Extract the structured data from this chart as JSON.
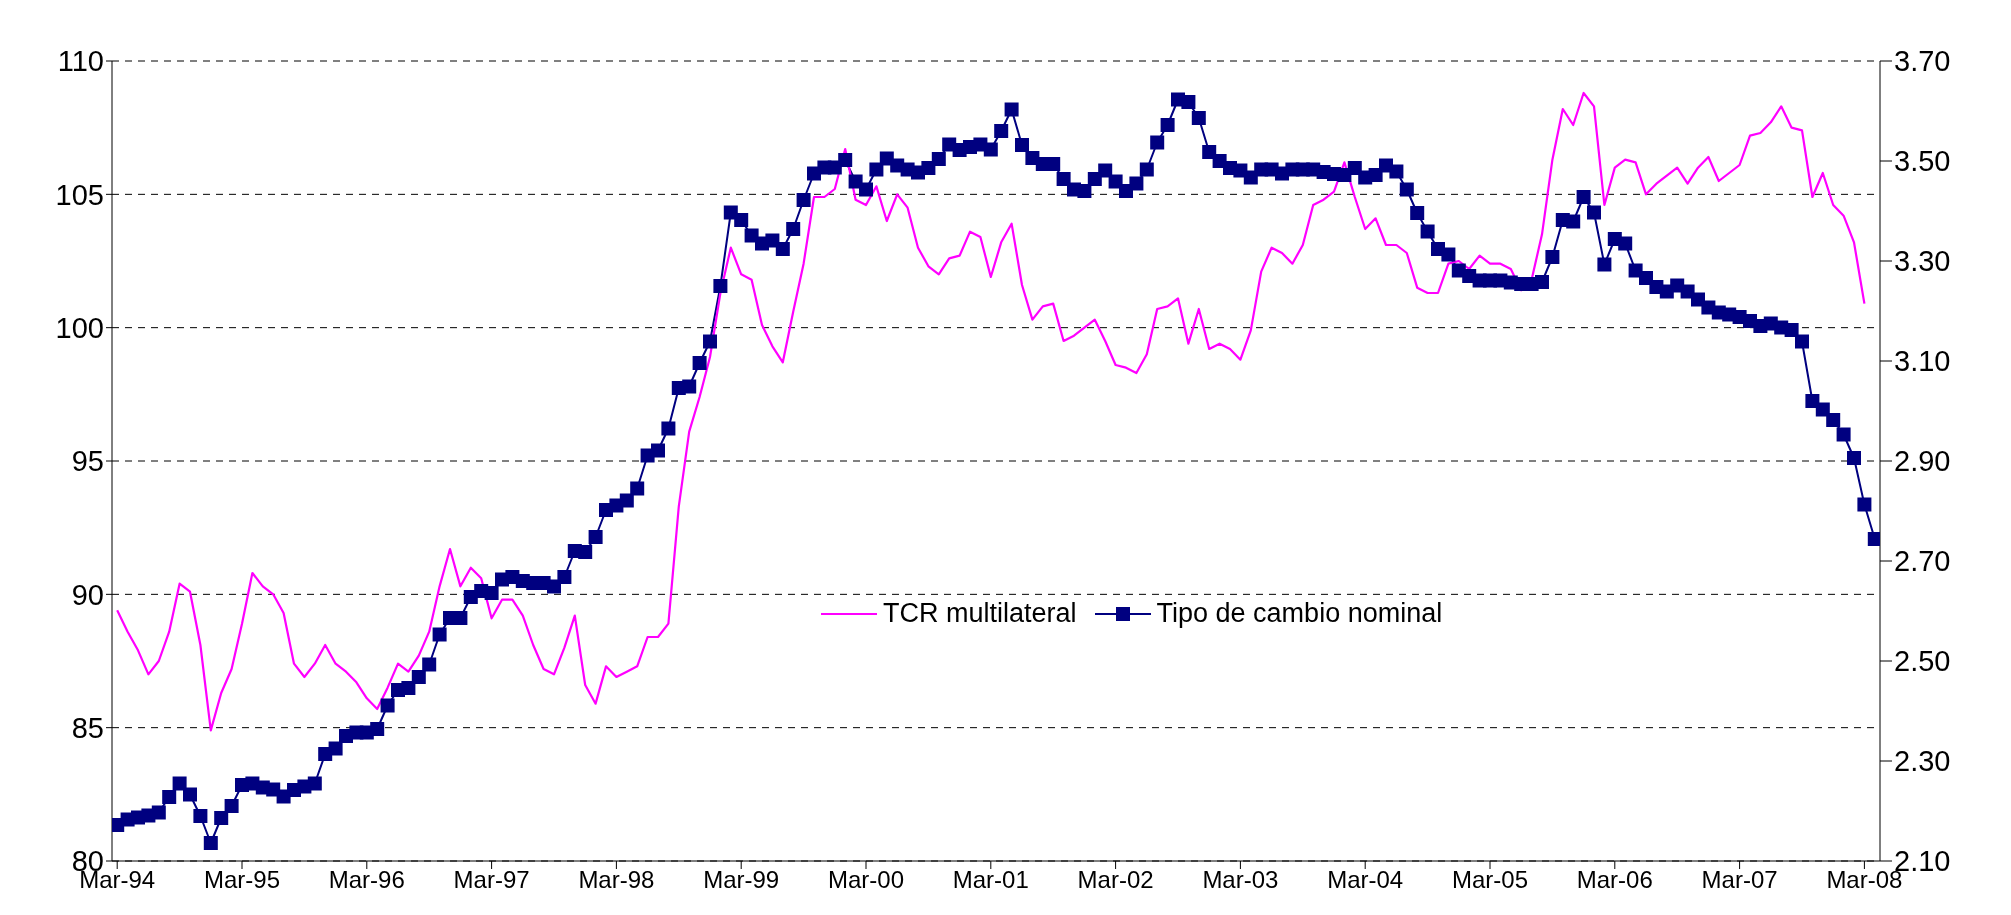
{
  "chart_data": {
    "type": "line",
    "categories": [
      "Mar-94",
      null,
      null,
      null,
      null,
      null,
      null,
      null,
      null,
      null,
      null,
      null,
      "Mar-95",
      null,
      null,
      null,
      null,
      null,
      null,
      null,
      null,
      null,
      null,
      null,
      "Mar-96",
      null,
      null,
      null,
      null,
      null,
      null,
      null,
      null,
      null,
      null,
      null,
      "Mar-97",
      null,
      null,
      null,
      null,
      null,
      null,
      null,
      null,
      null,
      null,
      null,
      "Mar-98",
      null,
      null,
      null,
      null,
      null,
      null,
      null,
      null,
      null,
      null,
      null,
      "Mar-99",
      null,
      null,
      null,
      null,
      null,
      null,
      null,
      null,
      null,
      null,
      null,
      "Mar-00",
      null,
      null,
      null,
      null,
      null,
      null,
      null,
      null,
      null,
      null,
      null,
      "Mar-01",
      null,
      null,
      null,
      null,
      null,
      null,
      null,
      null,
      null,
      null,
      null,
      "Mar-02",
      null,
      null,
      null,
      null,
      null,
      null,
      null,
      null,
      null,
      null,
      null,
      "Mar-03",
      null,
      null,
      null,
      null,
      null,
      null,
      null,
      null,
      null,
      null,
      null,
      "Mar-04",
      null,
      null,
      null,
      null,
      null,
      null,
      null,
      null,
      null,
      null,
      null,
      "Mar-05",
      null,
      null,
      null,
      null,
      null,
      null,
      null,
      null,
      null,
      null,
      null,
      "Mar-06",
      null,
      null,
      null,
      null,
      null,
      null,
      null,
      null,
      null,
      null,
      null,
      "Mar-07",
      null,
      null,
      null,
      null,
      null,
      null,
      null,
      null,
      null,
      null,
      null,
      "Mar-08",
      null
    ],
    "series": [
      {
        "name": "TCR multilateral",
        "color": "#ff00ff",
        "marker": "none",
        "values": [
          89.4,
          88.6,
          87.9,
          87.0,
          87.5,
          88.6,
          90.4,
          90.1,
          88.1,
          84.9,
          86.3,
          87.2,
          88.9,
          90.8,
          90.3,
          90.0,
          89.3,
          87.4,
          86.9,
          87.4,
          88.1,
          87.4,
          87.1,
          86.7,
          86.1,
          85.7,
          86.5,
          87.4,
          87.1,
          87.7,
          88.6,
          90.3,
          91.7,
          90.3,
          91.0,
          90.6,
          89.1,
          89.8,
          89.8,
          89.2,
          88.1,
          87.2,
          87.0,
          88.0,
          89.2,
          86.6,
          85.9,
          87.3,
          86.9,
          87.1,
          87.3,
          88.4,
          88.4,
          88.9,
          93.3,
          96.1,
          97.4,
          98.9,
          101.3,
          103.0,
          102.0,
          101.8,
          100.1,
          99.3,
          98.7,
          100.6,
          102.4,
          104.9,
          104.9,
          105.2,
          106.7,
          104.8,
          104.6,
          105.3,
          104.0,
          105.0,
          104.5,
          103.0,
          102.3,
          102.0,
          102.6,
          102.7,
          103.6,
          103.4,
          101.9,
          103.2,
          103.9,
          101.6,
          100.3,
          100.8,
          100.9,
          99.5,
          99.7,
          100.0,
          100.3,
          99.5,
          98.6,
          98.5,
          98.3,
          99.0,
          100.7,
          100.8,
          101.1,
          99.4,
          100.7,
          99.2,
          99.4,
          99.2,
          98.8,
          99.9,
          102.1,
          103.0,
          102.8,
          102.4,
          103.1,
          104.6,
          104.8,
          105.1,
          106.2,
          104.9,
          103.7,
          104.1,
          103.1,
          103.1,
          102.8,
          101.5,
          101.3,
          101.3,
          102.4,
          102.5,
          102.2,
          102.7,
          102.4,
          102.4,
          102.2,
          101.4,
          101.8,
          103.5,
          106.3,
          108.2,
          107.6,
          108.8,
          108.3,
          104.6,
          106.0,
          106.3,
          106.2,
          105.0,
          105.4,
          105.7,
          106.0,
          105.4,
          106.0,
          106.4,
          105.5,
          105.8,
          106.1,
          107.2,
          107.3,
          107.7,
          108.3,
          107.5,
          107.4,
          104.9,
          105.8,
          104.6,
          104.2,
          103.2,
          100.9,
          null
        ]
      },
      {
        "name": "Tipo de cambio nominal",
        "color": "#000080",
        "marker": "square",
        "axis": "y2",
        "values": [
          2.172,
          2.183,
          2.187,
          2.191,
          2.197,
          2.228,
          2.255,
          2.233,
          2.19,
          2.136,
          2.186,
          2.21,
          2.252,
          2.255,
          2.247,
          2.243,
          2.229,
          2.242,
          2.249,
          2.255,
          2.314,
          2.325,
          2.35,
          2.357,
          2.357,
          2.364,
          2.411,
          2.442,
          2.446,
          2.468,
          2.493,
          2.553,
          2.586,
          2.586,
          2.628,
          2.64,
          2.636,
          2.663,
          2.668,
          2.66,
          2.656,
          2.656,
          2.649,
          2.668,
          2.72,
          2.718,
          2.748,
          2.802,
          2.811,
          2.821,
          2.845,
          2.911,
          2.921,
          2.965,
          3.046,
          3.049,
          3.096,
          3.139,
          3.25,
          3.397,
          3.382,
          3.351,
          3.335,
          3.341,
          3.324,
          3.364,
          3.422,
          3.475,
          3.487,
          3.487,
          3.502,
          3.459,
          3.443,
          3.483,
          3.505,
          3.491,
          3.483,
          3.477,
          3.486,
          3.504,
          3.533,
          3.522,
          3.528,
          3.533,
          3.523,
          3.56,
          3.603,
          3.532,
          3.506,
          3.494,
          3.494,
          3.464,
          3.443,
          3.44,
          3.464,
          3.481,
          3.459,
          3.44,
          3.455,
          3.483,
          3.537,
          3.572,
          3.623,
          3.618,
          3.586,
          3.518,
          3.5,
          3.486,
          3.481,
          3.467,
          3.483,
          3.483,
          3.475,
          3.483,
          3.483,
          3.483,
          3.478,
          3.474,
          3.472,
          3.486,
          3.467,
          3.472,
          3.491,
          3.479,
          3.443,
          3.396,
          3.359,
          3.324,
          3.313,
          3.281,
          3.27,
          3.261,
          3.261,
          3.261,
          3.257,
          3.254,
          3.254,
          3.258,
          3.308,
          3.382,
          3.379,
          3.428,
          3.397,
          3.293,
          3.344,
          3.335,
          3.281,
          3.266,
          3.248,
          3.239,
          3.251,
          3.239,
          3.223,
          3.207,
          3.197,
          3.193,
          3.188,
          3.18,
          3.17,
          3.175,
          3.167,
          3.162,
          3.139,
          3.02,
          3.003,
          2.982,
          2.953,
          2.906,
          2.813,
          2.744
        ]
      }
    ],
    "ylim": [
      80,
      110
    ],
    "yticks": [
      80,
      85,
      90,
      95,
      100,
      105,
      110
    ],
    "y2lim": [
      2.1,
      3.7
    ],
    "y2ticks": [
      {
        "value": 2.1,
        "label": "2.10"
      },
      {
        "value": 2.3,
        "label": "2.30"
      },
      {
        "value": 2.5,
        "label": "2.50"
      },
      {
        "value": 2.7,
        "label": "2.70"
      },
      {
        "value": 2.9,
        "label": "2.90"
      },
      {
        "value": 3.1,
        "label": "3.10"
      },
      {
        "value": 3.3,
        "label": "3.30"
      },
      {
        "value": 3.5,
        "label": "3.50"
      },
      {
        "value": 3.7,
        "label": "3.70"
      }
    ],
    "grid": "y",
    "legend": "center"
  }
}
